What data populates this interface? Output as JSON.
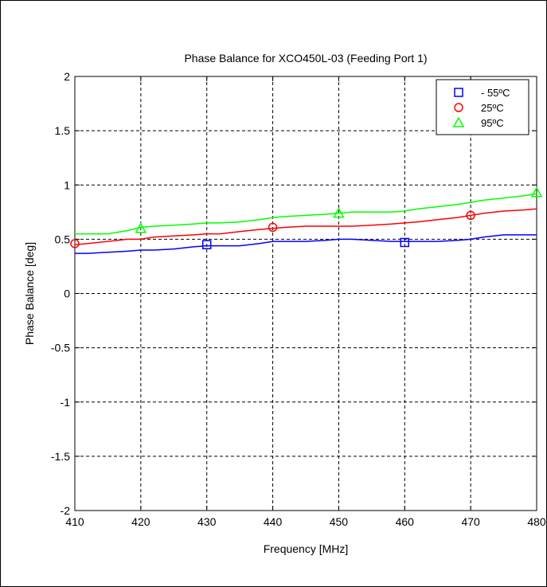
{
  "chart_data": {
    "type": "line",
    "title": "Phase Balance for XCO450L-03 (Feeding Port 1)",
    "xlabel": "Frequency [MHz]",
    "ylabel": "Phase Balance [deg]",
    "xlim": [
      410,
      480
    ],
    "ylim": [
      -2,
      2
    ],
    "x_ticks": [
      410,
      420,
      430,
      440,
      450,
      460,
      470,
      480
    ],
    "y_ticks": [
      -2,
      -1.5,
      -1,
      -0.5,
      0,
      0.5,
      1,
      1.5,
      2
    ],
    "x_tick_labels": [
      "410",
      "420",
      "430",
      "440",
      "450",
      "460",
      "470",
      "480"
    ],
    "y_tick_labels": [
      "-2",
      "-1.5",
      "-1",
      "-0.5",
      "0",
      "0.5",
      "1",
      "1.5",
      "2"
    ],
    "grid": true,
    "legend_position": "top-right",
    "series": [
      {
        "name": "- 55ºC",
        "color": "#0000ff",
        "marker": "square",
        "x": [
          410,
          412,
          415,
          418,
          420,
          422,
          425,
          428,
          430,
          432,
          435,
          438,
          440,
          442,
          445,
          448,
          450,
          452,
          455,
          458,
          460,
          462,
          465,
          468,
          470,
          472,
          475,
          478,
          480
        ],
        "y": [
          0.37,
          0.37,
          0.38,
          0.39,
          0.4,
          0.4,
          0.41,
          0.43,
          0.44,
          0.44,
          0.44,
          0.46,
          0.48,
          0.48,
          0.48,
          0.49,
          0.5,
          0.5,
          0.49,
          0.48,
          0.48,
          0.48,
          0.48,
          0.49,
          0.5,
          0.52,
          0.54,
          0.54,
          0.54
        ],
        "marker_x": [
          430,
          460
        ],
        "marker_y": [
          0.45,
          0.47
        ]
      },
      {
        "name": "25ºC",
        "color": "#ff0000",
        "marker": "circle",
        "x": [
          410,
          412,
          415,
          418,
          420,
          422,
          425,
          428,
          430,
          432,
          435,
          438,
          440,
          442,
          445,
          448,
          450,
          452,
          455,
          458,
          460,
          462,
          465,
          468,
          470,
          472,
          475,
          478,
          480
        ],
        "y": [
          0.45,
          0.46,
          0.48,
          0.5,
          0.5,
          0.52,
          0.53,
          0.54,
          0.55,
          0.55,
          0.57,
          0.59,
          0.6,
          0.61,
          0.62,
          0.62,
          0.62,
          0.62,
          0.63,
          0.64,
          0.65,
          0.66,
          0.68,
          0.7,
          0.72,
          0.74,
          0.76,
          0.77,
          0.78
        ],
        "marker_x": [
          410,
          440,
          470
        ],
        "marker_y": [
          0.46,
          0.61,
          0.72
        ]
      },
      {
        "name": "95ºC",
        "color": "#00ff00",
        "marker": "triangle",
        "x": [
          410,
          412,
          415,
          418,
          420,
          422,
          425,
          428,
          430,
          432,
          435,
          438,
          440,
          442,
          445,
          448,
          450,
          452,
          455,
          458,
          460,
          462,
          465,
          468,
          470,
          472,
          475,
          478,
          480
        ],
        "y": [
          0.55,
          0.55,
          0.55,
          0.58,
          0.61,
          0.62,
          0.63,
          0.64,
          0.65,
          0.65,
          0.66,
          0.68,
          0.7,
          0.71,
          0.72,
          0.73,
          0.74,
          0.75,
          0.75,
          0.75,
          0.76,
          0.78,
          0.8,
          0.82,
          0.84,
          0.86,
          0.88,
          0.9,
          0.92
        ],
        "marker_x": [
          420,
          450,
          480
        ],
        "marker_y": [
          0.6,
          0.74,
          0.93
        ]
      }
    ]
  }
}
